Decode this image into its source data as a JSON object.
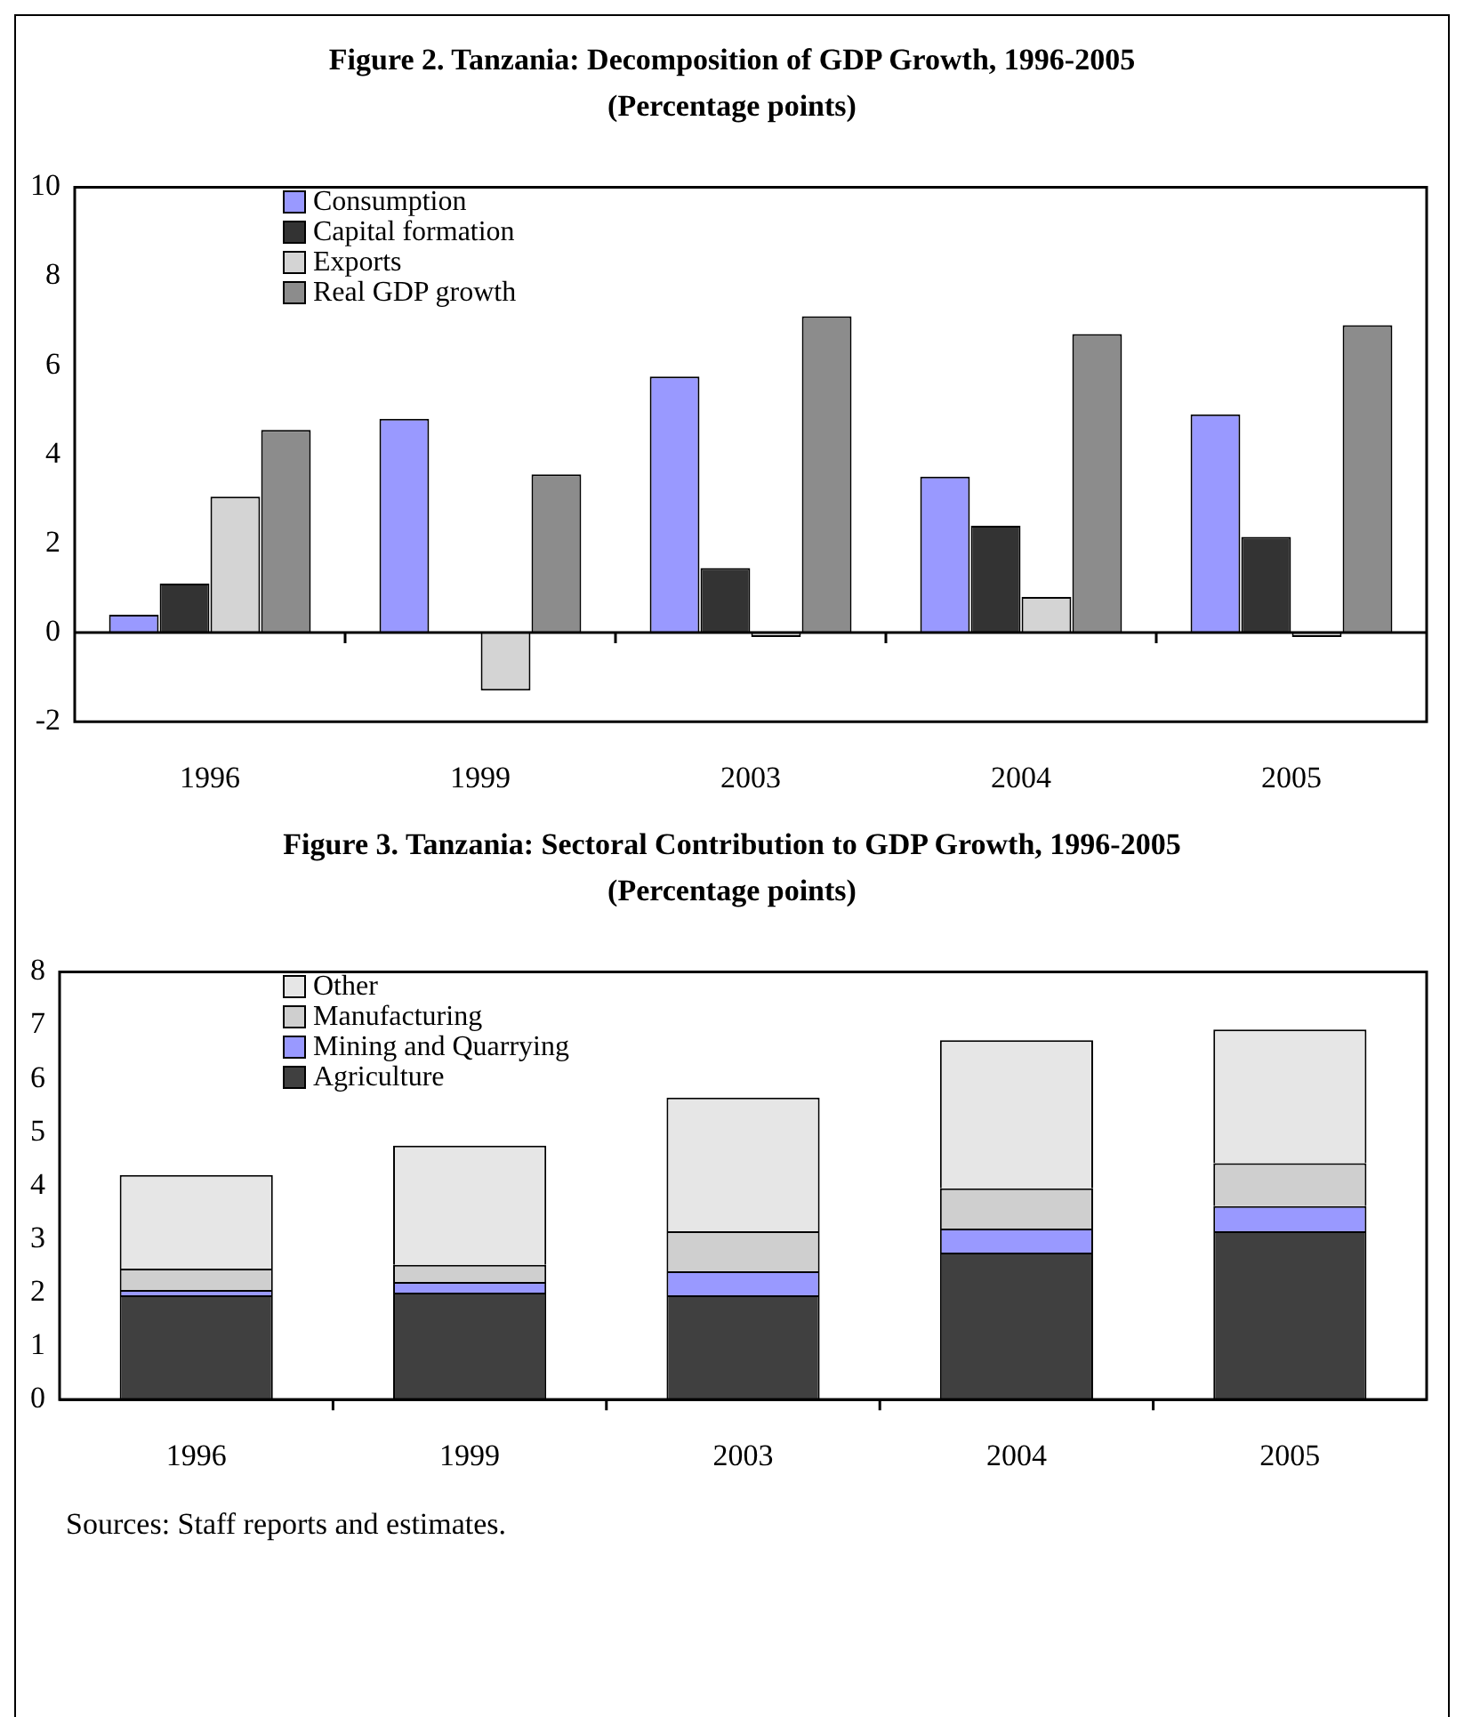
{
  "chart_data": [
    {
      "type": "bar",
      "title": "Figure 2. Tanzania: Decomposition of GDP Growth, 1996-2005",
      "subtitle": "(Percentage points)",
      "categories": [
        "1996",
        "1999",
        "2003",
        "2004",
        "2005"
      ],
      "series": [
        {
          "name": "Consumption",
          "color": "#9999ff",
          "values": [
            0.4,
            4.8,
            5.75,
            3.5,
            4.9
          ]
        },
        {
          "name": "Capital formation",
          "color": "#333333",
          "values": [
            1.1,
            0.0,
            1.45,
            2.4,
            2.15
          ]
        },
        {
          "name": "Exports",
          "color": "#d4d4d4",
          "values": [
            3.05,
            -1.3,
            -0.1,
            0.8,
            -0.1
          ]
        },
        {
          "name": "Real GDP growth",
          "color": "#8c8c8c",
          "values": [
            4.55,
            3.55,
            7.1,
            6.7,
            6.9
          ]
        }
      ],
      "ylim": [
        -2,
        10
      ],
      "yticks": [
        -2,
        0,
        2,
        4,
        6,
        8,
        10
      ],
      "legend": "top left"
    },
    {
      "type": "bar",
      "title": "Figure 3. Tanzania: Sectoral Contribution to GDP Growth, 1996-2005",
      "subtitle": "(Percentage points)",
      "categories": [
        "1996",
        "1999",
        "2003",
        "2004",
        "2005"
      ],
      "stacked": true,
      "series": [
        {
          "name": "Agriculture",
          "color": "#404040",
          "values": [
            1.95,
            2.0,
            1.95,
            2.75,
            3.15
          ]
        },
        {
          "name": "Mining and Quarrying",
          "color": "#9999ff",
          "values": [
            0.1,
            0.2,
            0.45,
            0.45,
            0.47
          ]
        },
        {
          "name": "Manufacturing",
          "color": "#cfcfcf",
          "values": [
            0.4,
            0.32,
            0.75,
            0.75,
            0.8
          ]
        },
        {
          "name": "Other",
          "color": "#e6e6e6",
          "values": [
            1.75,
            2.23,
            2.5,
            2.77,
            2.5
          ]
        }
      ],
      "ylim": [
        0,
        8
      ],
      "yticks": [
        0,
        1,
        2,
        3,
        4,
        5,
        6,
        7,
        8
      ],
      "legend": "top left",
      "annotations": [
        "Sources: Staff reports and estimates."
      ]
    }
  ]
}
